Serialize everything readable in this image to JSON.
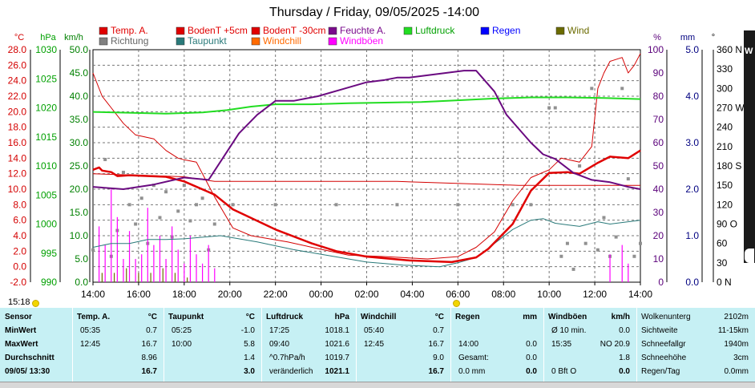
{
  "chart_data": {
    "type": "line",
    "title": "Thursday / Friday, 09/05/2025  -14:00",
    "x_ticks": [
      "14:00",
      "16:00",
      "18:00",
      "20:00",
      "22:00",
      "00:00",
      "02:00",
      "04:00",
      "06:00",
      "08:00",
      "10:00",
      "12:00",
      "14:00"
    ],
    "axes": {
      "temp_c": {
        "unit": "°C",
        "color": "#d40000",
        "ticks": [
          "28.0",
          "26.0",
          "24.0",
          "22.0",
          "20.0",
          "18.0",
          "16.0",
          "14.0",
          "12.0",
          "10.0",
          "8.0",
          "6.0",
          "4.0",
          "2.0",
          "0.0",
          "-2.0"
        ]
      },
      "pressure_hpa": {
        "unit": "hPa",
        "color": "#00a000",
        "ticks": [
          "1030",
          "1025",
          "1020",
          "1015",
          "1010",
          "1005",
          "1000",
          "995",
          "990"
        ]
      },
      "wind_kmh": {
        "unit": "km/h",
        "color": "#008000",
        "ticks": [
          "50.0",
          "45.0",
          "40.0",
          "35.0",
          "30.0",
          "25.0",
          "20.0",
          "15.0",
          "10.0",
          "5.0",
          "0.0"
        ]
      },
      "humidity_pct": {
        "unit": "%",
        "color": "#5a007a",
        "ticks": [
          "100",
          "90",
          "80",
          "70",
          "60",
          "50",
          "40",
          "30",
          "20",
          "10",
          "0"
        ]
      },
      "rain_mm": {
        "unit": "mm",
        "color": "#000080",
        "ticks": [
          "5.0",
          "4.0",
          "3.0",
          "2.0",
          "1.0",
          "0.0"
        ]
      },
      "direction_deg": {
        "unit": "°",
        "color": "#000000",
        "ticks": [
          "360 N",
          "330",
          "300",
          "270 W",
          "240",
          "210",
          "180 S",
          "150",
          "120",
          "90 O",
          "60",
          "30",
          "0 N"
        ]
      }
    },
    "legend": [
      {
        "name": "Temp. A.",
        "color": "#e00000"
      },
      {
        "name": "BodenT +5cm",
        "color": "#e00000"
      },
      {
        "name": "BodenT -30cm",
        "color": "#e00000"
      },
      {
        "name": "Feuchte A.",
        "color": "#7a0a8c"
      },
      {
        "name": "Luftdruck",
        "color": "#22dd22"
      },
      {
        "name": "Regen",
        "color": "#0000ff"
      },
      {
        "name": "Wind",
        "color": "#6b6b00"
      },
      {
        "name": "Richtung",
        "color": "#808080"
      },
      {
        "name": "Taupunkt",
        "color": "#2a7a7a"
      },
      {
        "name": "Windchill",
        "color": "#ff6a00"
      },
      {
        "name": "Windböen",
        "color": "#ff00ff"
      }
    ],
    "series": [
      {
        "name": "Temp. A.",
        "axis": "temp_c",
        "points": [
          [
            0,
            12.5
          ],
          [
            2,
            12.8
          ],
          [
            3,
            12.4
          ],
          [
            6,
            12.2
          ],
          [
            8,
            11.7
          ],
          [
            12,
            11.8
          ],
          [
            24,
            11.6
          ],
          [
            30,
            11.0
          ],
          [
            40,
            9.3
          ],
          [
            46,
            7.4
          ],
          [
            60,
            4.8
          ],
          [
            72,
            3.0
          ],
          [
            80,
            2.0
          ],
          [
            90,
            1.3
          ],
          [
            104,
            0.8
          ],
          [
            118,
            0.6
          ],
          [
            126,
            1.2
          ],
          [
            130,
            2.3
          ],
          [
            138,
            5.5
          ],
          [
            144,
            9.8
          ],
          [
            150,
            12.1
          ],
          [
            156,
            12.2
          ],
          [
            160,
            12.0
          ],
          [
            166,
            13.4
          ],
          [
            170,
            14.2
          ],
          [
            176,
            14.0
          ],
          [
            180,
            15.0
          ]
        ]
      },
      {
        "name": "BodenT +5cm",
        "axis": "temp_c",
        "points": [
          [
            0,
            25.0
          ],
          [
            3,
            22.0
          ],
          [
            6,
            20.5
          ],
          [
            10,
            18.5
          ],
          [
            14,
            17.0
          ],
          [
            20,
            16.5
          ],
          [
            24,
            15.0
          ],
          [
            28,
            14.0
          ],
          [
            30,
            13.8
          ],
          [
            34,
            13.5
          ],
          [
            40,
            9.0
          ],
          [
            46,
            5.0
          ],
          [
            52,
            4.0
          ],
          [
            64,
            3.2
          ],
          [
            72,
            2.5
          ],
          [
            84,
            1.5
          ],
          [
            96,
            1.3
          ],
          [
            110,
            1.0
          ],
          [
            120,
            1.3
          ],
          [
            126,
            2.5
          ],
          [
            132,
            4.5
          ],
          [
            138,
            8.5
          ],
          [
            144,
            11.5
          ],
          [
            150,
            12.5
          ],
          [
            154,
            14.0
          ],
          [
            160,
            13.5
          ],
          [
            164,
            15.5
          ],
          [
            166,
            23.0
          ],
          [
            168,
            25.0
          ],
          [
            170,
            26.5
          ],
          [
            174,
            27.0
          ],
          [
            176,
            25.0
          ],
          [
            178,
            26.0
          ],
          [
            180,
            27.5
          ]
        ]
      },
      {
        "name": "BodenT -30cm",
        "axis": "temp_c",
        "points": [
          [
            0,
            12.0
          ],
          [
            30,
            11.6
          ],
          [
            40,
            11.0
          ],
          [
            100,
            11.0
          ],
          [
            140,
            10.5
          ],
          [
            180,
            10.5
          ]
        ]
      },
      {
        "name": "Feuchte A.",
        "axis": "humidity_pct",
        "points": [
          [
            0,
            41
          ],
          [
            10,
            40
          ],
          [
            20,
            42
          ],
          [
            30,
            45
          ],
          [
            38,
            44
          ],
          [
            42,
            52
          ],
          [
            48,
            64
          ],
          [
            54,
            72
          ],
          [
            60,
            78
          ],
          [
            66,
            78
          ],
          [
            74,
            80
          ],
          [
            82,
            83
          ],
          [
            90,
            86
          ],
          [
            96,
            87
          ],
          [
            100,
            88
          ],
          [
            104,
            88
          ],
          [
            110,
            89
          ],
          [
            116,
            90
          ],
          [
            122,
            91
          ],
          [
            126,
            91
          ],
          [
            128,
            88
          ],
          [
            132,
            82
          ],
          [
            136,
            72
          ],
          [
            140,
            66
          ],
          [
            144,
            60
          ],
          [
            148,
            55
          ],
          [
            152,
            53
          ],
          [
            158,
            47
          ],
          [
            164,
            44
          ],
          [
            170,
            43
          ],
          [
            176,
            41
          ],
          [
            180,
            40
          ]
        ]
      },
      {
        "name": "Luftdruck",
        "axis": "pressure_hpa",
        "points": [
          [
            0,
            1019.3
          ],
          [
            24,
            1019.0
          ],
          [
            36,
            1019.2
          ],
          [
            44,
            1019.6
          ],
          [
            52,
            1020.2
          ],
          [
            60,
            1020.6
          ],
          [
            72,
            1020.6
          ],
          [
            84,
            1020.8
          ],
          [
            96,
            1020.9
          ],
          [
            108,
            1021.0
          ],
          [
            120,
            1021.3
          ],
          [
            132,
            1021.6
          ],
          [
            144,
            1021.8
          ],
          [
            156,
            1021.8
          ],
          [
            168,
            1021.7
          ],
          [
            180,
            1021.5
          ]
        ]
      },
      {
        "name": "Taupunkt",
        "axis": "temp_c",
        "points": [
          [
            0,
            2.5
          ],
          [
            6,
            3.0
          ],
          [
            12,
            3.0
          ],
          [
            18,
            3.5
          ],
          [
            24,
            3.5
          ],
          [
            30,
            3.6
          ],
          [
            36,
            3.8
          ],
          [
            42,
            4.0
          ],
          [
            48,
            3.6
          ],
          [
            54,
            3.2
          ],
          [
            60,
            2.7
          ],
          [
            66,
            2.2
          ],
          [
            72,
            1.8
          ],
          [
            78,
            1.4
          ],
          [
            84,
            1.0
          ],
          [
            90,
            0.6
          ],
          [
            96,
            0.4
          ],
          [
            102,
            0.2
          ],
          [
            108,
            0.1
          ],
          [
            114,
            0.0
          ],
          [
            120,
            0.5
          ],
          [
            126,
            1.2
          ],
          [
            132,
            3.0
          ],
          [
            138,
            4.8
          ],
          [
            144,
            6.0
          ],
          [
            148,
            6.2
          ],
          [
            152,
            5.6
          ],
          [
            156,
            5.4
          ],
          [
            160,
            5.2
          ],
          [
            166,
            5.8
          ],
          [
            170,
            5.5
          ],
          [
            176,
            5.8
          ],
          [
            180,
            6.0
          ]
        ]
      },
      {
        "name": "Richtung",
        "axis": "direction_deg",
        "kind": "scatter",
        "points": [
          [
            0,
            50
          ],
          [
            4,
            190
          ],
          [
            6,
            40
          ],
          [
            8,
            80
          ],
          [
            10,
            170
          ],
          [
            12,
            120
          ],
          [
            14,
            90
          ],
          [
            16,
            130
          ],
          [
            18,
            60
          ],
          [
            20,
            150
          ],
          [
            22,
            100
          ],
          [
            24,
            140
          ],
          [
            26,
            70
          ],
          [
            28,
            110
          ],
          [
            30,
            150
          ],
          [
            32,
            95
          ],
          [
            34,
            120
          ],
          [
            36,
            130
          ],
          [
            38,
            50
          ],
          [
            40,
            90
          ],
          [
            46,
            120
          ],
          [
            60,
            120
          ],
          [
            80,
            120
          ],
          [
            100,
            120
          ],
          [
            120,
            120
          ],
          [
            138,
            120
          ],
          [
            144,
            120
          ],
          [
            150,
            270
          ],
          [
            152,
            270
          ],
          [
            154,
            40
          ],
          [
            156,
            60
          ],
          [
            158,
            20
          ],
          [
            160,
            180
          ],
          [
            162,
            60
          ],
          [
            164,
            300
          ],
          [
            166,
            50
          ],
          [
            168,
            100
          ],
          [
            170,
            40
          ],
          [
            172,
            70
          ],
          [
            174,
            300
          ],
          [
            176,
            160
          ],
          [
            178,
            40
          ],
          [
            180,
            60
          ]
        ]
      },
      {
        "name": "Windböen",
        "axis": "wind_kmh",
        "kind": "impulse",
        "points": [
          [
            2,
            12
          ],
          [
            4,
            8
          ],
          [
            6,
            20
          ],
          [
            8,
            14
          ],
          [
            10,
            5
          ],
          [
            12,
            11
          ],
          [
            14,
            5
          ],
          [
            16,
            6
          ],
          [
            18,
            16
          ],
          [
            20,
            8
          ],
          [
            22,
            10
          ],
          [
            24,
            5
          ],
          [
            26,
            12
          ],
          [
            28,
            7
          ],
          [
            30,
            4
          ],
          [
            32,
            10
          ],
          [
            34,
            6
          ],
          [
            36,
            4
          ],
          [
            38,
            8
          ],
          [
            40,
            3
          ],
          [
            170,
            6
          ],
          [
            174,
            8
          ],
          [
            176,
            4
          ]
        ]
      },
      {
        "name": "Wind",
        "axis": "wind_kmh",
        "kind": "impulse",
        "points": [
          [
            3,
            2
          ],
          [
            7,
            2
          ],
          [
            11,
            3
          ],
          [
            15,
            2
          ],
          [
            19,
            2
          ],
          [
            23,
            3
          ],
          [
            27,
            2
          ],
          [
            31,
            1
          ]
        ]
      }
    ]
  },
  "time_bar": {
    "current_time": "15:18"
  },
  "panel": {
    "columns": [
      {
        "header": "Sensor",
        "unit": "",
        "rows": [
          [
            "MinWert",
            ""
          ],
          [
            "MaxWert",
            ""
          ],
          [
            "Durchschnitt",
            ""
          ],
          [
            "09/05/ 13:30",
            ""
          ]
        ]
      },
      {
        "header": "Temp. A.",
        "unit": "°C",
        "rows": [
          [
            "05:35",
            "0.7"
          ],
          [
            "12:45",
            "16.7"
          ],
          [
            "",
            "8.96"
          ],
          [
            "",
            "16.7"
          ]
        ]
      },
      {
        "header": "Taupunkt",
        "unit": "°C",
        "rows": [
          [
            "05:25",
            "-1.0"
          ],
          [
            "10:00",
            "5.8"
          ],
          [
            "",
            "1.4"
          ],
          [
            "",
            "3.0"
          ]
        ]
      },
      {
        "header": "Luftdruck",
        "unit": "hPa",
        "rows": [
          [
            "17:25",
            "1018.1"
          ],
          [
            "09:40",
            "1021.6"
          ],
          [
            "^0.7hPa/h",
            "1019.7"
          ],
          [
            "veränderlich",
            "1021.1"
          ]
        ]
      },
      {
        "header": "Windchill",
        "unit": "°C",
        "rows": [
          [
            "05:40",
            "0.7"
          ],
          [
            "12:45",
            "16.7"
          ],
          [
            "",
            "9.0"
          ],
          [
            "",
            "16.7"
          ]
        ]
      },
      {
        "header": "Regen",
        "unit": "mm",
        "rows": [
          [
            "",
            ""
          ],
          [
            "14:00",
            "0.0"
          ],
          [
            "Gesamt:",
            "0.0"
          ],
          [
            "0.0 mm",
            "0.0"
          ]
        ]
      },
      {
        "header": "Windböen",
        "unit": "km/h",
        "rows": [
          [
            "Ø 10 min.",
            "0.0"
          ],
          [
            "15:35",
            "NO 20.9"
          ],
          [
            "",
            "1.8"
          ],
          [
            "0 Bft O",
            "0.0"
          ]
        ]
      },
      {
        "header": "Wolkenunterg",
        "unit": "2102m",
        "rows": [
          [
            "Sichtweite",
            "11-15km"
          ],
          [
            "Schneefallgr",
            "1940m"
          ],
          [
            "Schneehöhe",
            "3cm"
          ],
          [
            "Regen/Tag",
            "0.0mm"
          ]
        ]
      }
    ]
  },
  "side_tab": {
    "letter": "W"
  }
}
